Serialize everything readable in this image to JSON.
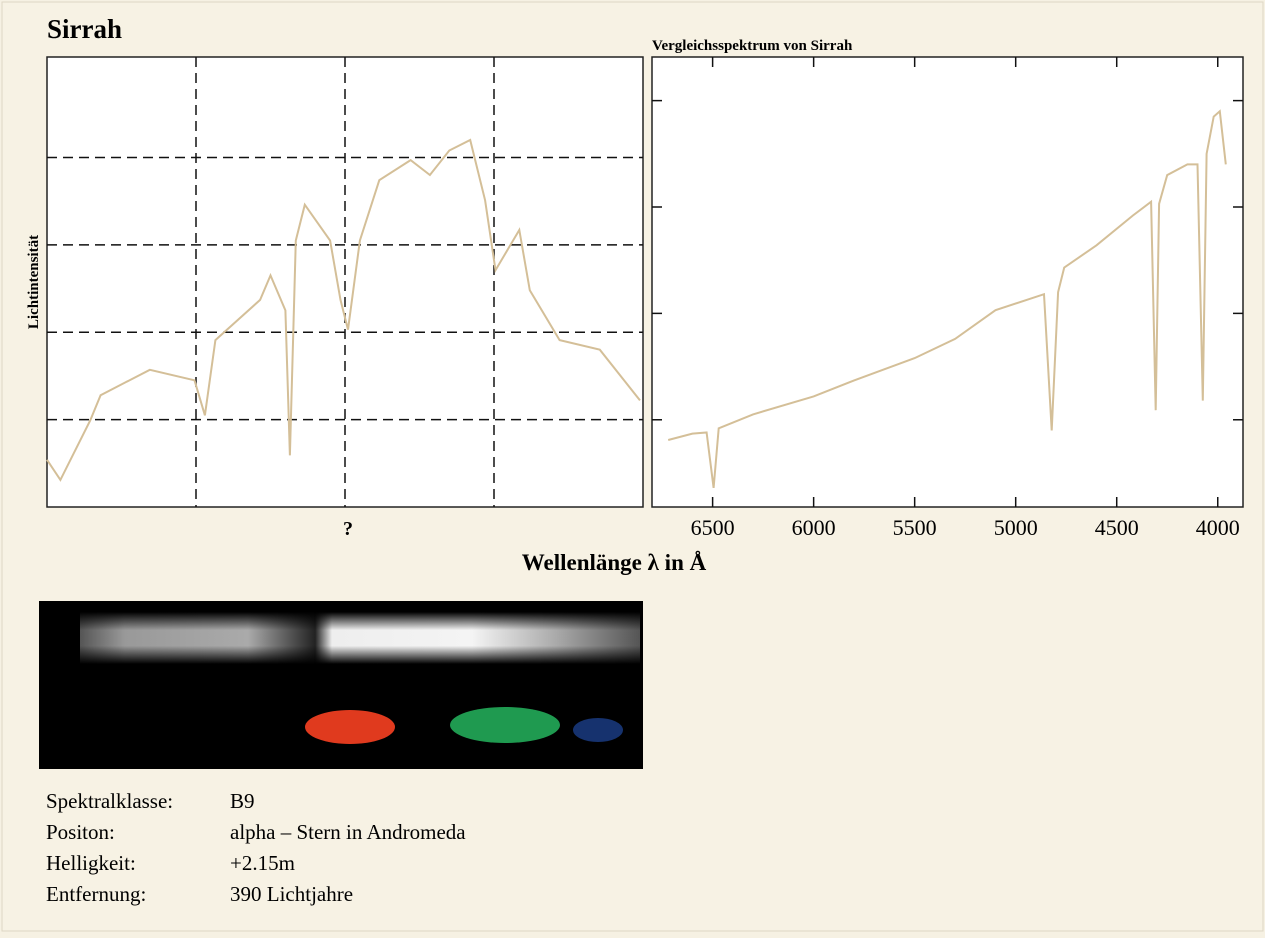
{
  "title": "Sirrah",
  "xlabel": "Wellenlänge λ in Å",
  "chart_data": [
    {
      "type": "line",
      "xlabel": "?",
      "ylabel": "Lichtintensität",
      "xlim": [
        0,
        4
      ],
      "ylim": [
        0,
        5.15
      ],
      "xticks": [
        1,
        2,
        3
      ],
      "yticks": [
        1,
        2,
        3,
        4
      ],
      "grid": true,
      "series": [
        {
          "color": "#d4bf98",
          "x": [
            0,
            0.09,
            0.29,
            0.36,
            0.69,
            0.99,
            1.06,
            1.13,
            1.43,
            1.5,
            1.6,
            1.63,
            1.67,
            1.73,
            1.9,
            1.97,
            2.02,
            2.1,
            2.23,
            2.44,
            2.57,
            2.7,
            2.84,
            2.94,
            3.01,
            3.17,
            3.24,
            3.44,
            3.71,
            3.98
          ],
          "values": [
            0.54,
            0.31,
            0.99,
            1.28,
            1.57,
            1.45,
            1.05,
            1.91,
            2.37,
            2.65,
            2.25,
            0.59,
            3.05,
            3.46,
            3.05,
            2.37,
            2.03,
            3.05,
            3.74,
            3.97,
            3.8,
            4.08,
            4.2,
            3.51,
            2.71,
            3.17,
            2.48,
            1.91,
            1.8,
            1.22
          ]
        }
      ]
    },
    {
      "type": "line",
      "title": "Vergleichsspektrum von Sirrah",
      "xlim": [
        6800,
        3875
      ],
      "ylim": [
        0.18,
        4.41
      ],
      "xticks": [
        6500,
        6000,
        5500,
        5000,
        4500,
        4000
      ],
      "yticks": [
        1,
        2,
        3,
        4
      ],
      "grid": false,
      "series": [
        {
          "color": "#d4bf98",
          "x": [
            6720,
            6600,
            6530,
            6495,
            6470,
            6300,
            6000,
            5800,
            5500,
            5300,
            5100,
            4860,
            4822,
            4790,
            4760,
            4600,
            4420,
            4330,
            4307,
            4290,
            4250,
            4150,
            4100,
            4074,
            4055,
            4020,
            3990,
            3960
          ],
          "values": [
            0.81,
            0.87,
            0.88,
            0.36,
            0.92,
            1.05,
            1.22,
            1.37,
            1.58,
            1.76,
            2.03,
            2.18,
            0.9,
            2.2,
            2.43,
            2.64,
            2.92,
            3.05,
            1.09,
            3.03,
            3.3,
            3.4,
            3.4,
            1.18,
            3.5,
            3.85,
            3.9,
            3.4
          ]
        }
      ]
    }
  ],
  "info": [
    [
      "Spektralklasse:",
      "B9"
    ],
    [
      "Positon:",
      "alpha – Stern in Andromeda"
    ],
    [
      "Helligkeit:",
      "+2.15m"
    ],
    [
      "Entfernung:",
      "390 Lichtjahre"
    ]
  ]
}
